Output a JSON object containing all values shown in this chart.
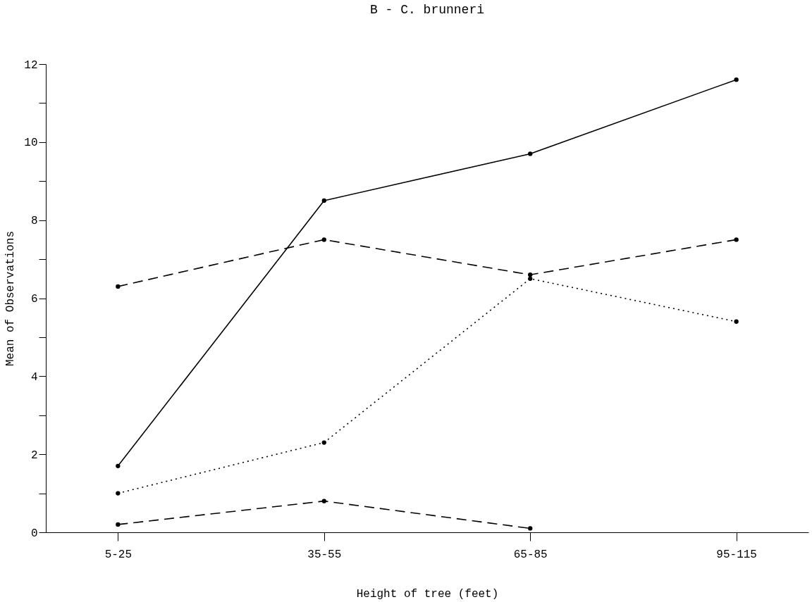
{
  "chart_data": {
    "type": "line",
    "title": "B - C. brunneri",
    "xlabel": "Height of tree (feet)",
    "ylabel": "Mean of Observations",
    "categories": [
      "5-25",
      "35-55",
      "65-85",
      "95-115"
    ],
    "series": [
      {
        "color": "#000000",
        "line_style": "solid",
        "values": [
          1.7,
          8.5,
          9.7,
          11.6
        ]
      },
      {
        "color": "#000000",
        "line_style": "dashed",
        "values": [
          6.3,
          7.5,
          6.6,
          7.5
        ]
      },
      {
        "color": "#000000",
        "line_style": "dotted",
        "values": [
          1.0,
          2.3,
          6.5,
          5.4
        ]
      },
      {
        "color": "#000000",
        "line_style": "dashed",
        "values": [
          0.2,
          0.8,
          0.1,
          null
        ]
      }
    ],
    "ylim": [
      0,
      12
    ],
    "yticks": [
      0,
      {
        "value": 1,
        "label": null
      },
      2,
      {
        "value": 3,
        "label": null
      },
      4,
      {
        "value": 5,
        "label": null
      },
      6,
      {
        "value": 7,
        "label": null
      },
      8,
      {
        "value": 9,
        "label": null
      },
      10,
      {
        "value": 11,
        "label": null
      },
      12
    ],
    "grid": false,
    "legend": false,
    "marker": "circle"
  }
}
